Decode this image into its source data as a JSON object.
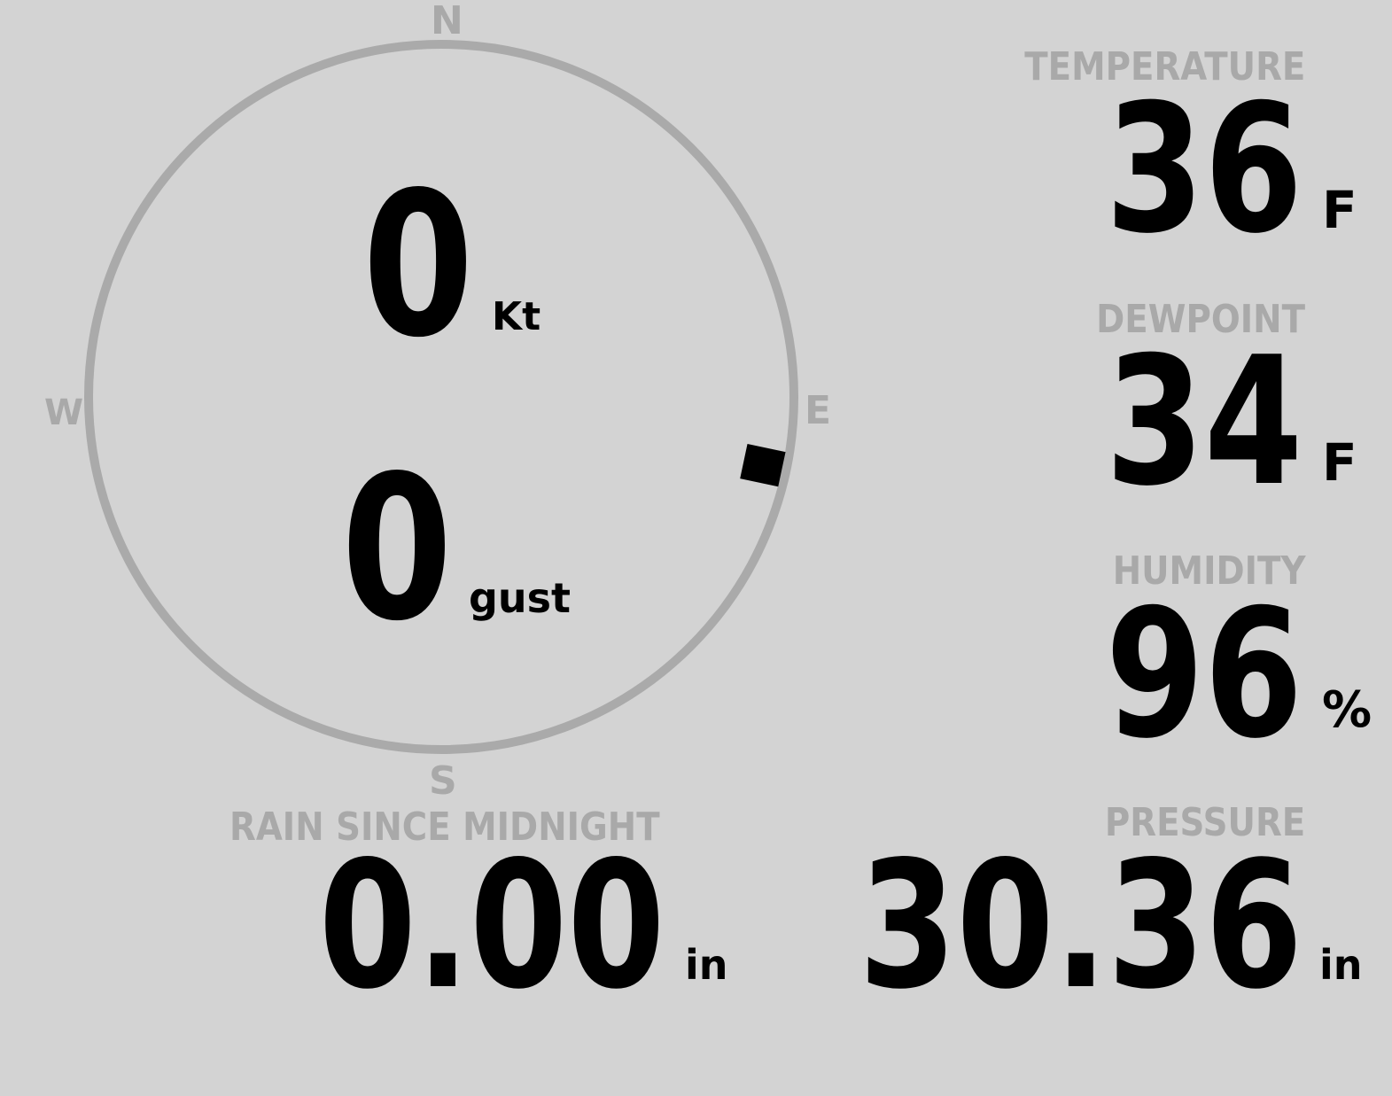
{
  "wind": {
    "speed": "0",
    "speed_unit": "Kt",
    "gust": "0",
    "gust_unit": "gust",
    "direction_deg": 102,
    "compass": {
      "n": "N",
      "e": "E",
      "s": "S",
      "w": "W"
    }
  },
  "temperature": {
    "label": "TEMPERATURE",
    "value": "36",
    "unit": "F"
  },
  "dewpoint": {
    "label": "DEWPOINT",
    "value": "34",
    "unit": "F"
  },
  "humidity": {
    "label": "HUMIDITY",
    "value": "96",
    "unit": "%"
  },
  "rain": {
    "label": "RAIN SINCE MIDNIGHT",
    "value": "0.00",
    "unit": "in"
  },
  "pressure": {
    "label": "PRESSURE",
    "value": "30.36",
    "unit": "in"
  },
  "colors": {
    "background": "#d3d3d3",
    "ring": "#aaaaaa",
    "label": "#a9a9a9",
    "value": "#000000"
  }
}
